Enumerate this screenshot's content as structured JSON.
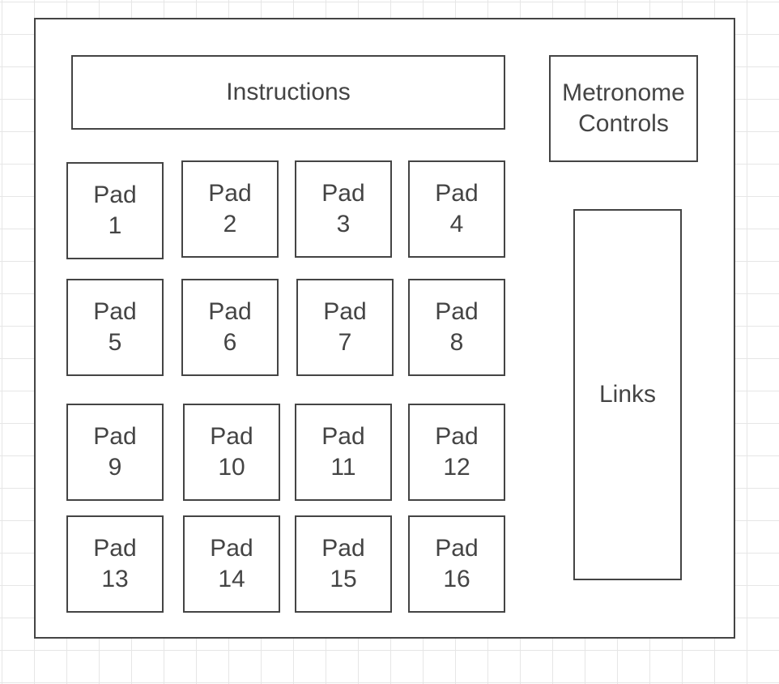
{
  "diagram": {
    "instructions": "Instructions",
    "metronome": {
      "line1": "Metronome",
      "line2": "Controls"
    },
    "links": "Links",
    "pad_word": "Pad",
    "pads": [
      {
        "number": "1"
      },
      {
        "number": "2"
      },
      {
        "number": "3"
      },
      {
        "number": "4"
      },
      {
        "number": "5"
      },
      {
        "number": "6"
      },
      {
        "number": "7"
      },
      {
        "number": "8"
      },
      {
        "number": "9"
      },
      {
        "number": "10"
      },
      {
        "number": "11"
      },
      {
        "number": "12"
      },
      {
        "number": "13"
      },
      {
        "number": "14"
      },
      {
        "number": "15"
      },
      {
        "number": "16"
      }
    ]
  }
}
